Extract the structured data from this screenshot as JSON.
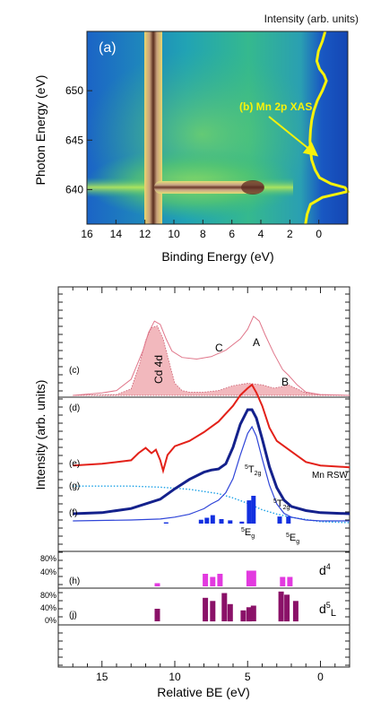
{
  "chart_data": [
    {
      "type": "heatmap",
      "panel_label": "(a)",
      "xlabel": "Binding Energy (eV)",
      "ylabel": "Photon Energy (eV)",
      "top_label": "Intensity (arb. units)",
      "annotation": "(b) Mn 2p XAS",
      "xlim": [
        16,
        -2
      ],
      "ylim": [
        636.5,
        656
      ],
      "x_ticks": [
        "16",
        "14",
        "12",
        "10",
        "8",
        "6",
        "4",
        "2",
        "0"
      ],
      "x_tick_values": [
        16,
        14,
        12,
        10,
        8,
        6,
        4,
        2,
        0
      ],
      "y_ticks": [
        "650",
        "645",
        "640"
      ],
      "y_tick_values": [
        650,
        645,
        640
      ],
      "features": {
        "cd4d_ridge_be": 11,
        "mn_resonance_photon_energy": 640,
        "mn_resonance_be_range": [
          11,
          3
        ]
      },
      "xas_curve": {
        "name": "(b) Mn 2p XAS",
        "photon_energy": [
          636.5,
          637.5,
          638.5,
          639.2,
          639.8,
          640.2,
          640.6,
          641.2,
          642,
          643,
          644,
          645,
          646,
          647,
          648,
          649,
          650,
          651,
          651.6,
          652.2,
          653,
          654,
          655,
          656
        ],
        "intensity": [
          0.25,
          0.28,
          0.34,
          0.55,
          1.0,
          0.95,
          0.7,
          0.5,
          0.42,
          0.36,
          0.34,
          0.33,
          0.34,
          0.36,
          0.4,
          0.46,
          0.55,
          0.62,
          0.58,
          0.5,
          0.45,
          0.48,
          0.55,
          0.6
        ]
      }
    },
    {
      "type": "line",
      "xlabel": "Relative BE (eV)",
      "ylabel": "Intensity (arb. units)",
      "xlim": [
        18,
        -2
      ],
      "x_ticks": [
        "15",
        "10",
        "5",
        "0"
      ],
      "x_tick_values": [
        15,
        10,
        5,
        0
      ],
      "curve_labels": [
        "(c)",
        "(d)",
        "(e)",
        "(g)",
        "(f)"
      ],
      "peak_labels": {
        "A": "A",
        "B": "B",
        "C": "C",
        "cd": "Cd 4d"
      },
      "mn_rsw_label": "Mn RSW",
      "state_labels": [
        {
          "sup": "5",
          "base": "T",
          "sub": "2g"
        },
        {
          "sup": "5",
          "base": "T",
          "sub": "2g"
        },
        {
          "sup": "5",
          "base": "E",
          "sub": "g"
        },
        {
          "sup": "5",
          "base": "E",
          "sub": "g"
        }
      ],
      "series": [
        {
          "key": "c",
          "style": "pink-thin",
          "x": [
            17,
            15,
            14,
            13,
            12.2,
            11.8,
            11.4,
            11,
            10.6,
            10.2,
            9.5,
            8.5,
            7.5,
            6.5,
            5.5,
            5,
            4.6,
            4.2,
            3.8,
            3.2,
            2.6,
            2.2,
            1.6,
            1,
            0,
            -2
          ],
          "y": [
            0.0,
            0.03,
            0.06,
            0.2,
            0.55,
            0.78,
            0.92,
            0.88,
            0.7,
            0.55,
            0.47,
            0.45,
            0.48,
            0.56,
            0.7,
            0.82,
            0.98,
            0.92,
            0.75,
            0.52,
            0.32,
            0.25,
            0.13,
            0.04,
            0.01,
            0.0
          ]
        },
        {
          "key": "cd",
          "style": "pink-fill",
          "x": [
            17,
            14,
            13,
            12.4,
            12,
            11.6,
            11.2,
            10.8,
            10.4,
            10,
            9.5,
            9,
            8,
            7,
            6,
            5,
            4,
            3.2,
            2.6,
            2.2,
            1.6,
            1,
            0,
            -2
          ],
          "y": [
            0,
            0.01,
            0.08,
            0.4,
            0.68,
            0.84,
            0.86,
            0.7,
            0.42,
            0.15,
            0.06,
            0.04,
            0.04,
            0.06,
            0.12,
            0.15,
            0.13,
            0.09,
            0.11,
            0.13,
            0.08,
            0.03,
            0.01,
            0
          ]
        },
        {
          "key": "d",
          "style": "red",
          "x": [
            17,
            15,
            13,
            12.5,
            12,
            11.6,
            11.3,
            11,
            10.8,
            10.5,
            10,
            9,
            8,
            7,
            6,
            5.5,
            5,
            4.7,
            4.4,
            4,
            3.5,
            3,
            2,
            1,
            0,
            -2
          ],
          "y": [
            0.12,
            0.14,
            0.18,
            0.26,
            0.32,
            0.26,
            0.3,
            0.18,
            0.06,
            0.24,
            0.34,
            0.4,
            0.5,
            0.62,
            0.8,
            0.92,
            1.0,
            1.04,
            0.95,
            0.8,
            0.55,
            0.4,
            0.28,
            0.16,
            0.12,
            0.1
          ]
        },
        {
          "key": "g",
          "style": "navy",
          "x": [
            17,
            15,
            13,
            11,
            10,
            9,
            8,
            7.5,
            7,
            6.5,
            6,
            5.5,
            5,
            4.7,
            4.4,
            4,
            3.5,
            3,
            2.5,
            2,
            1,
            0,
            -2
          ],
          "y": [
            0.0,
            0.01,
            0.05,
            0.14,
            0.24,
            0.33,
            0.4,
            0.42,
            0.43,
            0.48,
            0.64,
            0.86,
            1.0,
            1.0,
            0.92,
            0.72,
            0.45,
            0.25,
            0.13,
            0.07,
            0.03,
            0.01,
            0.0
          ]
        },
        {
          "key": "f",
          "style": "blue",
          "x": [
            17,
            13,
            11,
            10,
            9,
            8.5,
            8,
            7.5,
            7,
            6.5,
            6,
            5.5,
            5,
            4.7,
            4.4,
            4,
            3.5,
            3,
            2.5,
            2,
            1,
            0,
            -2
          ],
          "y": [
            0.0,
            0.01,
            0.02,
            0.04,
            0.07,
            0.1,
            0.13,
            0.18,
            0.22,
            0.3,
            0.45,
            0.7,
            0.93,
            1.0,
            0.9,
            0.66,
            0.38,
            0.18,
            0.08,
            0.04,
            0.01,
            0.0,
            0.0
          ]
        },
        {
          "key": "bg",
          "style": "dotted",
          "x": [
            17,
            13,
            11,
            9,
            7,
            6,
            5,
            4,
            3,
            2,
            1,
            0,
            -2
          ],
          "y": [
            0.34,
            0.34,
            0.33,
            0.31,
            0.27,
            0.23,
            0.18,
            0.12,
            0.08,
            0.05,
            0.03,
            0.01,
            0.0
          ]
        }
      ],
      "bars_f": [
        {
          "x": 10.6,
          "h": 0.04
        },
        {
          "x": 8.2,
          "h": 0.12
        },
        {
          "x": 7.8,
          "h": 0.18
        },
        {
          "x": 7.4,
          "h": 0.26
        },
        {
          "x": 6.8,
          "h": 0.14
        },
        {
          "x": 6.2,
          "h": 0.1
        },
        {
          "x": 5.4,
          "h": 0.06
        },
        {
          "x": 4.9,
          "h": 0.72
        },
        {
          "x": 4.6,
          "h": 0.86
        },
        {
          "x": 2.8,
          "h": 0.22
        },
        {
          "x": 2.2,
          "h": 0.22
        }
      ],
      "h_panel": {
        "label": "(h)",
        "state": "d",
        "state_sup": "4",
        "y_ticks": [
          "80%",
          "40%"
        ],
        "bars": [
          {
            "x": 11.2,
            "v": 0.1
          },
          {
            "x": 7.9,
            "v": 0.4
          },
          {
            "x": 7.4,
            "v": 0.3
          },
          {
            "x": 6.9,
            "v": 0.4
          },
          {
            "x": 4.9,
            "v": 0.5
          },
          {
            "x": 4.6,
            "v": 0.5
          },
          {
            "x": 2.6,
            "v": 0.3
          },
          {
            "x": 2.1,
            "v": 0.3
          }
        ]
      },
      "j_panel": {
        "label": "(j)",
        "state": "d",
        "state_sup": "5",
        "state_suffix": "L",
        "y_ticks": [
          "80%",
          "40%",
          "0%"
        ],
        "bars": [
          {
            "x": 11.2,
            "v": 0.4
          },
          {
            "x": 7.9,
            "v": 0.75
          },
          {
            "x": 7.4,
            "v": 0.65
          },
          {
            "x": 6.6,
            "v": 0.9
          },
          {
            "x": 6.2,
            "v": 0.55
          },
          {
            "x": 5.3,
            "v": 0.35
          },
          {
            "x": 4.9,
            "v": 0.45
          },
          {
            "x": 4.6,
            "v": 0.5
          },
          {
            "x": 2.7,
            "v": 0.95
          },
          {
            "x": 2.3,
            "v": 0.85
          },
          {
            "x": 1.7,
            "v": 0.65
          }
        ]
      }
    }
  ]
}
